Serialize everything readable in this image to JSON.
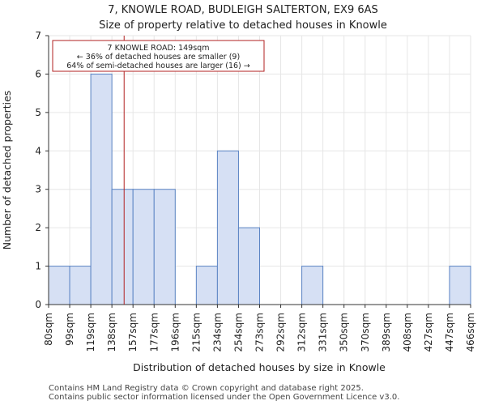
{
  "chart_data": {
    "type": "bar",
    "title": [
      "7, KNOWLE ROAD, BUDLEIGH SALTERTON, EX9 6AS",
      "Size of property relative to detached houses in Knowle"
    ],
    "xlabel": "Distribution of detached houses by size in Knowle",
    "ylabel": "Number of detached properties",
    "bin_edges": [
      80,
      99,
      119,
      138,
      157,
      177,
      196,
      215,
      234,
      254,
      273,
      292,
      312,
      331,
      350,
      370,
      389,
      408,
      427,
      447,
      466
    ],
    "tick_labels": [
      "80sqm",
      "99sqm",
      "119sqm",
      "138sqm",
      "157sqm",
      "177sqm",
      "196sqm",
      "215sqm",
      "234sqm",
      "254sqm",
      "273sqm",
      "292sqm",
      "312sqm",
      "331sqm",
      "350sqm",
      "370sqm",
      "389sqm",
      "408sqm",
      "427sqm",
      "447sqm",
      "466sqm"
    ],
    "values": [
      1,
      1,
      6,
      3,
      3,
      3,
      0,
      1,
      4,
      2,
      0,
      0,
      1,
      0,
      0,
      0,
      0,
      0,
      0,
      1
    ],
    "ylim": [
      0,
      7
    ],
    "yticks": [
      0,
      1,
      2,
      3,
      4,
      5,
      6,
      7
    ],
    "grid": true,
    "bar_color": "#d6e0f4",
    "bar_edge_color": "#5b84c4",
    "marker": {
      "value": 149,
      "color": "#b22222"
    },
    "annotation": {
      "lines": [
        "7 KNOWLE ROAD: 149sqm",
        "← 36% of detached houses are smaller (9)",
        "64% of semi-detached houses are larger (16) →"
      ],
      "border_color": "#b22222"
    }
  },
  "footer": {
    "line1": "Contains HM Land Registry data © Crown copyright and database right 2025.",
    "line2": "Contains public sector information licensed under the Open Government Licence v3.0."
  }
}
